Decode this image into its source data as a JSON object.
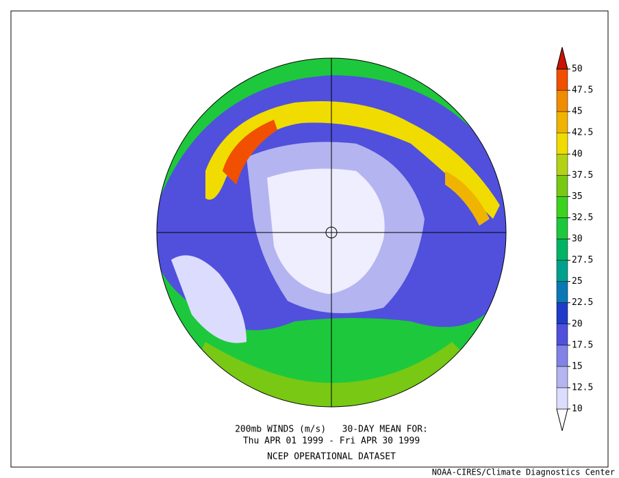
{
  "map": {
    "title_lines": [
      "200mb WINDS (m/s)   30-DAY MEAN FOR:",
      "Thu APR 01 1999 - Fri APR 30 1999",
      "NCEP OPERATIONAL DATASET"
    ],
    "credit": "NOAA-CIRES/Climate Diagnostics Center",
    "colorbar": {
      "levels": [
        10,
        12.5,
        15,
        17.5,
        20,
        22.5,
        25,
        27.5,
        30,
        32.5,
        35,
        37.5,
        40,
        42.5,
        45,
        47.5,
        50
      ],
      "colors": [
        "#ffffff",
        "#dcdcff",
        "#b4b4f0",
        "#8282e6",
        "#5050dc",
        "#1e3cc8",
        "#0a78b4",
        "#00a08c",
        "#00b464",
        "#1ec83c",
        "#3cd21e",
        "#78c814",
        "#b4d214",
        "#f0dc00",
        "#f0b400",
        "#f08c00",
        "#f05000",
        "#c81400"
      ]
    }
  }
}
